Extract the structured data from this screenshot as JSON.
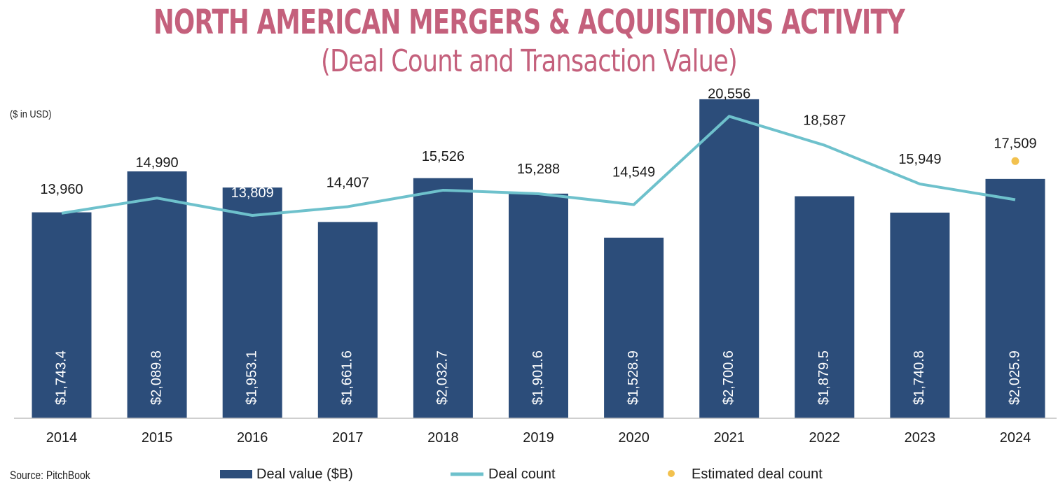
{
  "title": "NORTH AMERICAN MERGERS & ACQUISITIONS ACTIVITY",
  "subtitle": "(Deal Count and Transaction Value)",
  "unit_note": "($ in USD)",
  "source": "Source: PitchBook",
  "colors": {
    "bar": "#2c4d7a",
    "line": "#6ec1cc",
    "estimate": "#f2c14e",
    "title": "#c4607c"
  },
  "chart_data": {
    "type": "bar",
    "categories": [
      "2014",
      "2015",
      "2016",
      "2017",
      "2018",
      "2019",
      "2020",
      "2021",
      "2022",
      "2023",
      "2024"
    ],
    "series": [
      {
        "name": "Deal value ($B)",
        "type": "bar",
        "values": [
          1743.4,
          2089.8,
          1953.1,
          1661.6,
          2032.7,
          1901.6,
          1528.9,
          2700.6,
          1879.5,
          1740.8,
          2025.9
        ],
        "labels": [
          "$1,743.4",
          "$2,089.8",
          "$1,953.1",
          "$1,661.6",
          "$2,032.7",
          "$1,901.6",
          "$1,528.9",
          "$2,700.6",
          "$1,879.5",
          "$1,740.8",
          "$2,025.9"
        ]
      },
      {
        "name": "Deal count",
        "type": "line",
        "values": [
          13960,
          14990,
          13809,
          14407,
          15526,
          15288,
          14549,
          20556,
          18587,
          15949,
          14880
        ],
        "labels": [
          "13,960",
          "14,990",
          "13,809",
          "14,407",
          "15,526",
          "15,288",
          "14,549",
          "20,556",
          "18,587",
          "15,949",
          ""
        ]
      },
      {
        "name": "Estimated deal count",
        "type": "scatter",
        "points": [
          {
            "x": "2024",
            "y": 17509,
            "label": "17,509"
          }
        ]
      }
    ],
    "bar_ylim": [
      0,
      2700
    ],
    "line_ylim": [
      0,
      23000
    ],
    "legend_position": "bottom",
    "grid": false
  }
}
